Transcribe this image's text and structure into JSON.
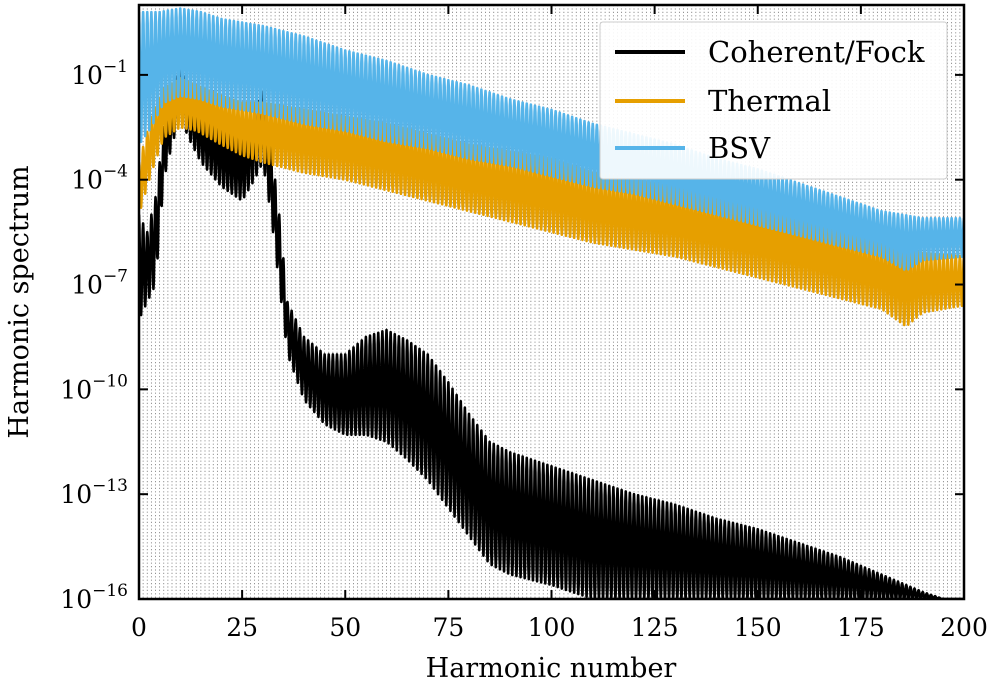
{
  "chart_data": {
    "type": "line",
    "title": "",
    "xlabel": "Harmonic number",
    "ylabel": "Harmonic spectrum",
    "xlim": [
      0,
      200
    ],
    "ylim_log10": [
      -16,
      1
    ],
    "yscale": "log",
    "grid": "vertical dotted line at every integer harmonic",
    "legend_position": "top-right",
    "x_ticks": [
      "0",
      "25",
      "50",
      "75",
      "100",
      "125",
      "150",
      "175",
      "200"
    ],
    "y_ticks": [
      {
        "base": "10",
        "exp": "−1",
        "log10": -1
      },
      {
        "base": "10",
        "exp": "−4",
        "log10": -4
      },
      {
        "base": "10",
        "exp": "−7",
        "log10": -7
      },
      {
        "base": "10",
        "exp": "−10",
        "log10": -10
      },
      {
        "base": "10",
        "exp": "−13",
        "log10": -13
      },
      {
        "base": "10",
        "exp": "−16",
        "log10": -16
      }
    ],
    "series": [
      {
        "name": "Coherent/Fock",
        "color": "#000000",
        "note": "upper/lower envelope of the spectrum, log10 values at harmonic x",
        "upper": [
          [
            0,
            -5
          ],
          [
            2,
            -5.5
          ],
          [
            4,
            -4.5
          ],
          [
            6,
            -2.5
          ],
          [
            8,
            -1.5
          ],
          [
            10,
            -0.6
          ],
          [
            12,
            -1.5
          ],
          [
            15,
            -2.0
          ],
          [
            20,
            -2.5
          ],
          [
            25,
            -2.8
          ],
          [
            28,
            -2.0
          ],
          [
            30,
            -1.5
          ],
          [
            32,
            -3.0
          ],
          [
            34,
            -5.0
          ],
          [
            36,
            -7.5
          ],
          [
            40,
            -8.5
          ],
          [
            45,
            -9.0
          ],
          [
            50,
            -9.0
          ],
          [
            55,
            -8.5
          ],
          [
            60,
            -8.3
          ],
          [
            65,
            -8.6
          ],
          [
            70,
            -9.0
          ],
          [
            75,
            -9.8
          ],
          [
            80,
            -10.7
          ],
          [
            85,
            -11.5
          ],
          [
            90,
            -11.8
          ],
          [
            100,
            -12.2
          ],
          [
            110,
            -12.6
          ],
          [
            120,
            -13.0
          ],
          [
            130,
            -13.3
          ],
          [
            140,
            -13.7
          ],
          [
            150,
            -14.0
          ],
          [
            160,
            -14.4
          ],
          [
            170,
            -14.8
          ],
          [
            180,
            -15.3
          ],
          [
            190,
            -15.8
          ],
          [
            195,
            -16.0
          ]
        ],
        "lower": [
          [
            0,
            -8
          ],
          [
            2,
            -7.5
          ],
          [
            4,
            -7
          ],
          [
            6,
            -4
          ],
          [
            8,
            -3
          ],
          [
            10,
            -2.2
          ],
          [
            12,
            -2.8
          ],
          [
            15,
            -3.5
          ],
          [
            20,
            -4.2
          ],
          [
            25,
            -4.6
          ],
          [
            28,
            -4.0
          ],
          [
            30,
            -3.5
          ],
          [
            32,
            -5.0
          ],
          [
            34,
            -7.0
          ],
          [
            36,
            -9.0
          ],
          [
            40,
            -10.3
          ],
          [
            45,
            -11.0
          ],
          [
            50,
            -11.3
          ],
          [
            55,
            -11.3
          ],
          [
            60,
            -11.5
          ],
          [
            65,
            -12.0
          ],
          [
            70,
            -12.6
          ],
          [
            75,
            -13.4
          ],
          [
            80,
            -14.2
          ],
          [
            85,
            -15.0
          ],
          [
            90,
            -15.3
          ],
          [
            100,
            -15.6
          ],
          [
            110,
            -16.0
          ],
          [
            200,
            -16.0
          ]
        ]
      },
      {
        "name": "Thermal",
        "color": "#e69f00",
        "note": "upper/lower envelope of the spectrum, log10 values at harmonic x",
        "upper": [
          [
            0,
            -3.5
          ],
          [
            3,
            -2.2
          ],
          [
            6,
            -1.4
          ],
          [
            10,
            -1.1
          ],
          [
            14,
            -1.3
          ],
          [
            20,
            -1.6
          ],
          [
            25,
            -1.8
          ],
          [
            30,
            -1.8
          ],
          [
            40,
            -2.0
          ],
          [
            50,
            -2.2
          ],
          [
            60,
            -2.4
          ],
          [
            70,
            -2.7
          ],
          [
            80,
            -3.0
          ],
          [
            90,
            -3.2
          ],
          [
            100,
            -3.4
          ],
          [
            110,
            -3.8
          ],
          [
            120,
            -4.0
          ],
          [
            130,
            -4.2
          ],
          [
            140,
            -4.5
          ],
          [
            150,
            -4.7
          ],
          [
            160,
            -5.0
          ],
          [
            170,
            -5.4
          ],
          [
            180,
            -5.8
          ],
          [
            190,
            -6.1
          ],
          [
            200,
            -6.2
          ]
        ],
        "lower": [
          [
            0,
            -5.0
          ],
          [
            3,
            -3.8
          ],
          [
            6,
            -2.8
          ],
          [
            10,
            -2.5
          ],
          [
            14,
            -2.6
          ],
          [
            20,
            -3.0
          ],
          [
            25,
            -3.3
          ],
          [
            30,
            -3.5
          ],
          [
            40,
            -3.8
          ],
          [
            50,
            -4.0
          ],
          [
            60,
            -4.3
          ],
          [
            70,
            -4.6
          ],
          [
            80,
            -4.9
          ],
          [
            90,
            -5.2
          ],
          [
            100,
            -5.5
          ],
          [
            110,
            -5.8
          ],
          [
            120,
            -6.0
          ],
          [
            130,
            -6.2
          ],
          [
            140,
            -6.5
          ],
          [
            150,
            -6.8
          ],
          [
            160,
            -7.1
          ],
          [
            170,
            -7.4
          ],
          [
            180,
            -7.7
          ],
          [
            186,
            -8.2
          ],
          [
            190,
            -7.8
          ],
          [
            200,
            -7.6
          ]
        ]
      },
      {
        "name": "BSV",
        "color": "#56b4e9",
        "note": "upper/lower envelope of the spectrum, log10 values at harmonic x",
        "upper": [
          [
            0,
            0.8
          ],
          [
            5,
            0.8
          ],
          [
            10,
            0.9
          ],
          [
            15,
            0.8
          ],
          [
            20,
            0.6
          ],
          [
            25,
            0.5
          ],
          [
            30,
            0.4
          ],
          [
            40,
            0.1
          ],
          [
            50,
            -0.3
          ],
          [
            60,
            -0.6
          ],
          [
            70,
            -1.0
          ],
          [
            80,
            -1.3
          ],
          [
            90,
            -1.7
          ],
          [
            100,
            -2.0
          ],
          [
            110,
            -2.4
          ],
          [
            120,
            -2.7
          ],
          [
            130,
            -3.0
          ],
          [
            140,
            -3.4
          ],
          [
            150,
            -3.7
          ],
          [
            160,
            -4.1
          ],
          [
            170,
            -4.5
          ],
          [
            180,
            -4.9
          ],
          [
            190,
            -5.1
          ],
          [
            200,
            -5.1
          ]
        ],
        "lower": [
          [
            0,
            -3.0
          ],
          [
            3,
            -2.5
          ],
          [
            6,
            -1.8
          ],
          [
            10,
            -1.6
          ],
          [
            15,
            -1.7
          ],
          [
            20,
            -1.9
          ],
          [
            25,
            -2.0
          ],
          [
            30,
            -2.1
          ],
          [
            40,
            -2.4
          ],
          [
            50,
            -2.6
          ],
          [
            60,
            -2.9
          ],
          [
            70,
            -3.1
          ],
          [
            80,
            -3.4
          ],
          [
            90,
            -3.6
          ],
          [
            100,
            -3.9
          ],
          [
            110,
            -4.2
          ],
          [
            120,
            -4.4
          ],
          [
            130,
            -4.7
          ],
          [
            140,
            -5.0
          ],
          [
            150,
            -5.3
          ],
          [
            160,
            -5.6
          ],
          [
            170,
            -5.9
          ],
          [
            180,
            -6.2
          ],
          [
            186,
            -6.6
          ],
          [
            190,
            -6.3
          ],
          [
            200,
            -6.2
          ]
        ]
      }
    ]
  }
}
